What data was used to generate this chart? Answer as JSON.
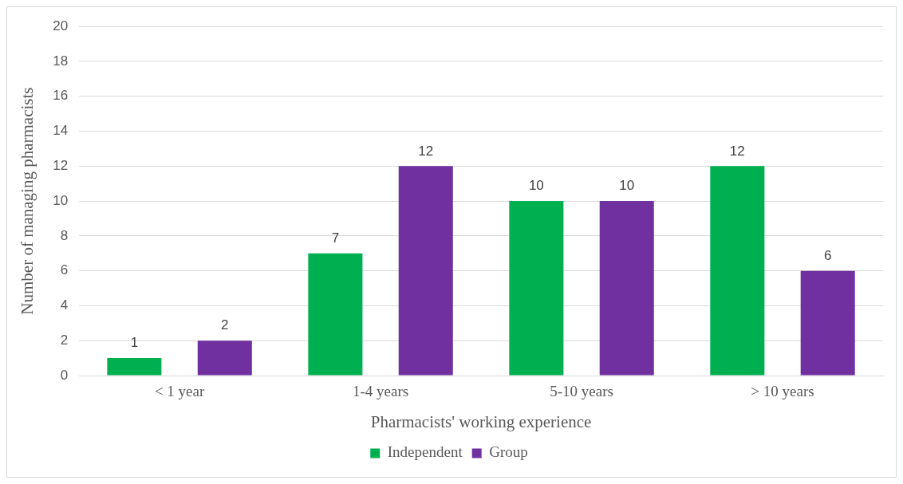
{
  "chart_data": {
    "type": "bar",
    "xlabel": "Pharmacists' working experience",
    "ylabel": "Number of managing pharmacists",
    "categories": [
      "< 1 year",
      "1-4 years",
      "5-10 years",
      "> 10 years"
    ],
    "series": [
      {
        "name": "Independent",
        "color": "#00b050",
        "values": [
          1,
          7,
          10,
          12
        ]
      },
      {
        "name": "Group",
        "color": "#7030a0",
        "values": [
          2,
          12,
          10,
          6
        ]
      }
    ],
    "ylim": [
      0,
      20
    ],
    "yticks": [
      0,
      2,
      4,
      6,
      8,
      10,
      12,
      14,
      16,
      18,
      20
    ],
    "grid": "y",
    "legend": "bottom",
    "data_labels": true
  }
}
